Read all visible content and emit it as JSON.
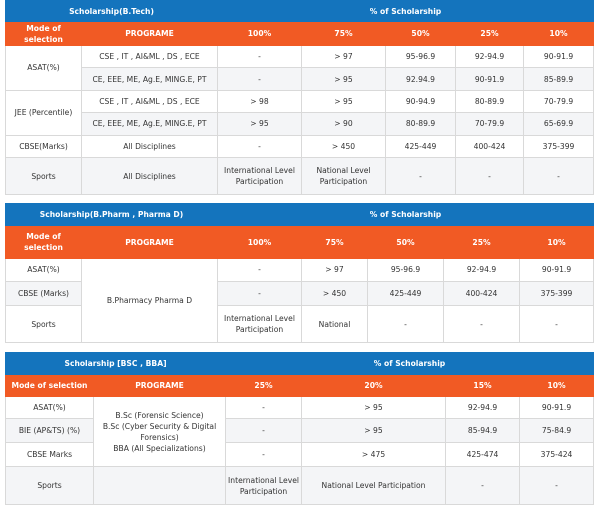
{
  "btech": {
    "title": "Scholarship(B.Tech)",
    "percent_title": "% of Scholarship",
    "headers": [
      "Mode of selection",
      "PROGRAME",
      "100%",
      "75%",
      "50%",
      "25%",
      "10%"
    ],
    "asat": {
      "mode": "ASAT(%)",
      "rows": [
        [
          "CSE , IT , AI&ML , DS , ECE",
          "-",
          "> 97",
          "95-96.9",
          "92-94.9",
          "90-91.9"
        ],
        [
          "CE, EEE, ME, Ag.E, MING.E, PT",
          "-",
          "> 95",
          "92.94.9",
          "90-91.9",
          "85-89.9"
        ]
      ]
    },
    "jee": {
      "mode": "JEE (Percentile)",
      "rows": [
        [
          "CSE , IT , AI&ML , DS , ECE",
          "> 98",
          "> 95",
          "90-94.9",
          "80-89.9",
          "70-79.9"
        ],
        [
          "CE, EEE, ME, Ag.E, MING.E, PT",
          "> 95",
          "> 90",
          "80-89.9",
          "70-79.9",
          "65-69.9"
        ]
      ]
    },
    "cbse": [
      "CBSE(Marks)",
      "All Disciplines",
      "-",
      "> 450",
      "425-449",
      "400-424",
      "375-399"
    ],
    "sports": [
      "Sports",
      "All Disciplines",
      "International Level Participation",
      "National Level Participation",
      "-",
      "-",
      "-"
    ]
  },
  "bpharm": {
    "title": "Scholarship(B.Pharm , Pharma D)",
    "percent_title": "% of Scholarship",
    "headers": [
      "Mode of selection",
      "PROGRAME",
      "100%",
      "75%",
      "50%",
      "25%",
      "10%"
    ],
    "programe": "B.Pharmacy Pharma D",
    "rows": [
      [
        "ASAT(%)",
        "-",
        "> 97",
        "95-96.9",
        "92-94.9",
        "90-91.9"
      ],
      [
        "CBSE (Marks)",
        "-",
        "> 450",
        "425-449",
        "400-424",
        "375-399"
      ],
      [
        "Sports",
        "International Level Participation",
        "National",
        "-",
        "-",
        "-"
      ]
    ]
  },
  "bsc": {
    "title": "Scholarship [BSC , BBA]",
    "percent_title": "% of Scholarship",
    "headers": [
      "Mode of selection",
      "PROGRAME",
      "25%",
      "20%",
      "15%",
      "10%"
    ],
    "programe": [
      "B.Sc (Forensic Science)",
      "B.Sc (Cyber Security & Digital Forensics)",
      "BBA (All Specializations)"
    ],
    "rows": [
      [
        "ASAT(%)",
        "-",
        "> 95",
        "92-94.9",
        "90-91.9"
      ],
      [
        "BIE (AP&TS) (%)",
        "-",
        "> 95",
        "85-94.9",
        "75-84.9"
      ],
      [
        "CBSE Marks",
        "-",
        "> 475",
        "425-474",
        "375-424"
      ],
      [
        "Sports",
        "International Level Participation",
        "National Level Participation",
        "-",
        "-"
      ]
    ]
  }
}
